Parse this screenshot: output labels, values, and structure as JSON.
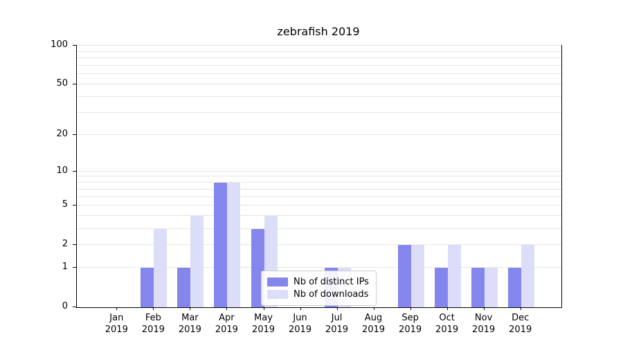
{
  "title": "zebrafish 2019",
  "chart_data": {
    "type": "bar",
    "title": "zebrafish 2019",
    "year_label": "2019",
    "categories": [
      "Jan",
      "Feb",
      "Mar",
      "Apr",
      "May",
      "Jun",
      "Jul",
      "Aug",
      "Sep",
      "Oct",
      "Nov",
      "Dec"
    ],
    "series": [
      {
        "name": "Nb of distinct IPs",
        "color": "#8486ee",
        "values": [
          0,
          1,
          1,
          8,
          3,
          0,
          1,
          0,
          2,
          1,
          1,
          1
        ]
      },
      {
        "name": "Nb of downloads",
        "color": "#dcddf8",
        "values": [
          0,
          3,
          4,
          8,
          4,
          0,
          1,
          0,
          2,
          2,
          1,
          2
        ]
      }
    ],
    "yscale": "log1p",
    "ylim": [
      0,
      100
    ],
    "yticks": [
      0,
      1,
      2,
      5,
      10,
      20,
      50,
      100
    ],
    "gridlines": [
      1,
      2,
      3,
      4,
      5,
      6,
      7,
      8,
      9,
      10,
      20,
      30,
      40,
      50,
      60,
      70,
      80,
      90,
      100
    ],
    "grid": true,
    "legend_position": "lower center"
  }
}
